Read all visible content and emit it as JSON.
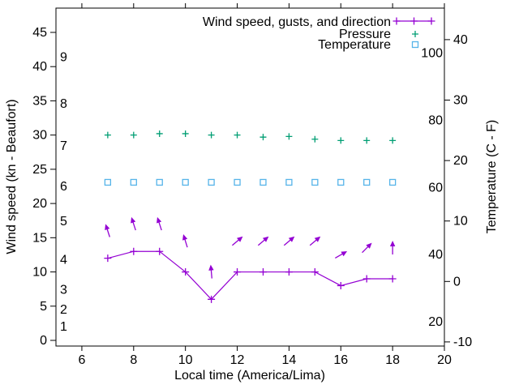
{
  "figure": {
    "background": "#ffffff",
    "text_color": "#000000"
  },
  "chart_data": {
    "type": "line",
    "title": "",
    "grid": false,
    "x_label": "Local time (America/Lima)",
    "x_range": [
      5,
      20
    ],
    "x_major_ticks": [
      6,
      8,
      10,
      12,
      14,
      16,
      18,
      20
    ],
    "y_left_label": "Wind speed (kn - Beaufort)",
    "y_left_range_kn": [
      0,
      45
    ],
    "y_left_ticks_kn": [
      0,
      5,
      10,
      15,
      20,
      25,
      30,
      35,
      40,
      45
    ],
    "beaufort_scale_labels": [
      {
        "label": "1",
        "kn": 2.0
      },
      {
        "label": "2",
        "kn": 4.5
      },
      {
        "label": "3",
        "kn": 7.4
      },
      {
        "label": "4",
        "kn": 11.8
      },
      {
        "label": "5",
        "kn": 17.4
      },
      {
        "label": "6",
        "kn": 22.5
      },
      {
        "label": "7",
        "kn": 28.4
      },
      {
        "label": "8",
        "kn": 34.6
      },
      {
        "label": "9",
        "kn": 41.4
      }
    ],
    "y_right_label": "Temperature (C - F)",
    "y_right_ticks_celsius": [
      -10,
      0,
      10,
      20,
      30,
      40
    ],
    "fahrenheit_scale_labels": [
      {
        "label": "100",
        "f": 100
      },
      {
        "label": "80",
        "f": 80
      },
      {
        "label": "60",
        "f": 60
      },
      {
        "label": "40",
        "f": 40
      },
      {
        "label": "20",
        "f": 20
      }
    ],
    "hours": [
      7,
      8,
      9,
      10,
      11,
      12,
      13,
      14,
      15,
      16,
      17,
      18
    ],
    "series": [
      {
        "name": "Wind speed",
        "color": "#9400d3",
        "marker": "plus",
        "line": true,
        "axis": "left-kn",
        "values": [
          12,
          13,
          13,
          10,
          6,
          10,
          10,
          10,
          10,
          8,
          9,
          9
        ]
      },
      {
        "name": "Wind gusts and direction",
        "color": "#9400d3",
        "marker": "arrow",
        "line": false,
        "axis": "left-kn",
        "values": [
          16,
          17,
          17,
          14.5,
          10,
          14.5,
          14.5,
          14.5,
          14.5,
          12.5,
          13.5,
          13.5
        ],
        "arrow_angles_deg_ccw_from_east": [
          108,
          108,
          108,
          107,
          95,
          40,
          40,
          40,
          40,
          30,
          45,
          90
        ]
      },
      {
        "name": "Pressure",
        "color": "#009e73",
        "marker": "plus",
        "line": false,
        "axis": "left-scale-units-not-labeled",
        "values": [
          30.0,
          30.0,
          30.2,
          30.2,
          30.0,
          30.0,
          29.7,
          29.8,
          29.4,
          29.2,
          29.2,
          29.2
        ]
      },
      {
        "name": "Temperature",
        "color": "#56b4e9",
        "marker": "open-square",
        "line": false,
        "axis": "right-celsius",
        "values": [
          16.4,
          16.4,
          16.4,
          16.4,
          16.4,
          16.4,
          16.4,
          16.4,
          16.4,
          16.4,
          16.4,
          16.4
        ]
      }
    ],
    "legend": {
      "position": "top-right-inside",
      "entries": [
        {
          "label": "Wind speed, gusts, and direction",
          "color": "#9400d3",
          "sample": "line-with-plus-markers"
        },
        {
          "label": "Pressure",
          "color": "#009e73",
          "sample": "plus"
        },
        {
          "label": "Temperature",
          "color": "#56b4e9",
          "sample": "open-square"
        }
      ]
    }
  }
}
